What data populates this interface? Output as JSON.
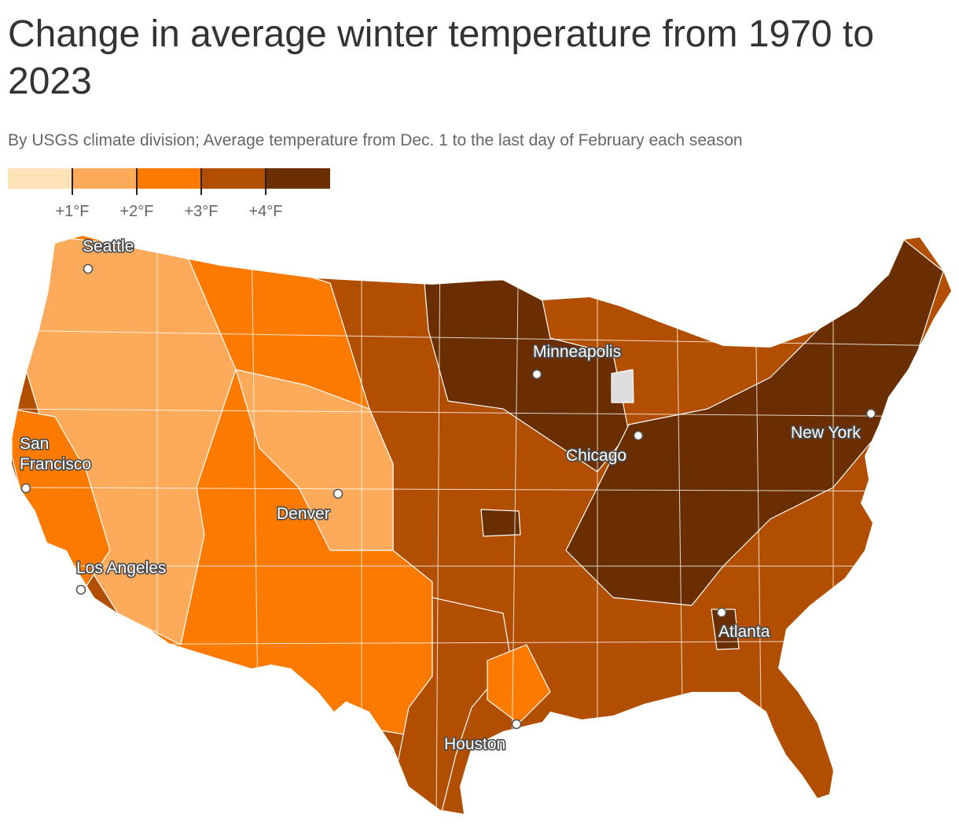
{
  "title": "Change in average winter temperature from 1970 to 2023",
  "subtitle": "By USGS climate division; Average temperature from Dec. 1 to the last day of February each season",
  "legend": {
    "colors": [
      "#fde2b8",
      "#fdaa5a",
      "#fd7a00",
      "#b24e00",
      "#6a2e00"
    ],
    "labels": [
      "+1°F",
      "+2°F",
      "+3°F",
      "+4°F"
    ],
    "no_data_color": "#dddddd"
  },
  "cities": [
    {
      "name": "Seattle",
      "lines": [
        "Seattle"
      ]
    },
    {
      "name": "Minneapolis",
      "lines": [
        "Minneapolis"
      ]
    },
    {
      "name": "San Francisco",
      "lines": [
        "San",
        "Francisco"
      ]
    },
    {
      "name": "Chicago",
      "lines": [
        "Chicago"
      ]
    },
    {
      "name": "New York",
      "lines": [
        "New York"
      ]
    },
    {
      "name": "Denver",
      "lines": [
        "Denver"
      ]
    },
    {
      "name": "Los Angeles",
      "lines": [
        "Los Angeles"
      ]
    },
    {
      "name": "Atlanta",
      "lines": [
        "Atlanta"
      ]
    },
    {
      "name": "Houston",
      "lines": [
        "Houston"
      ]
    }
  ]
}
